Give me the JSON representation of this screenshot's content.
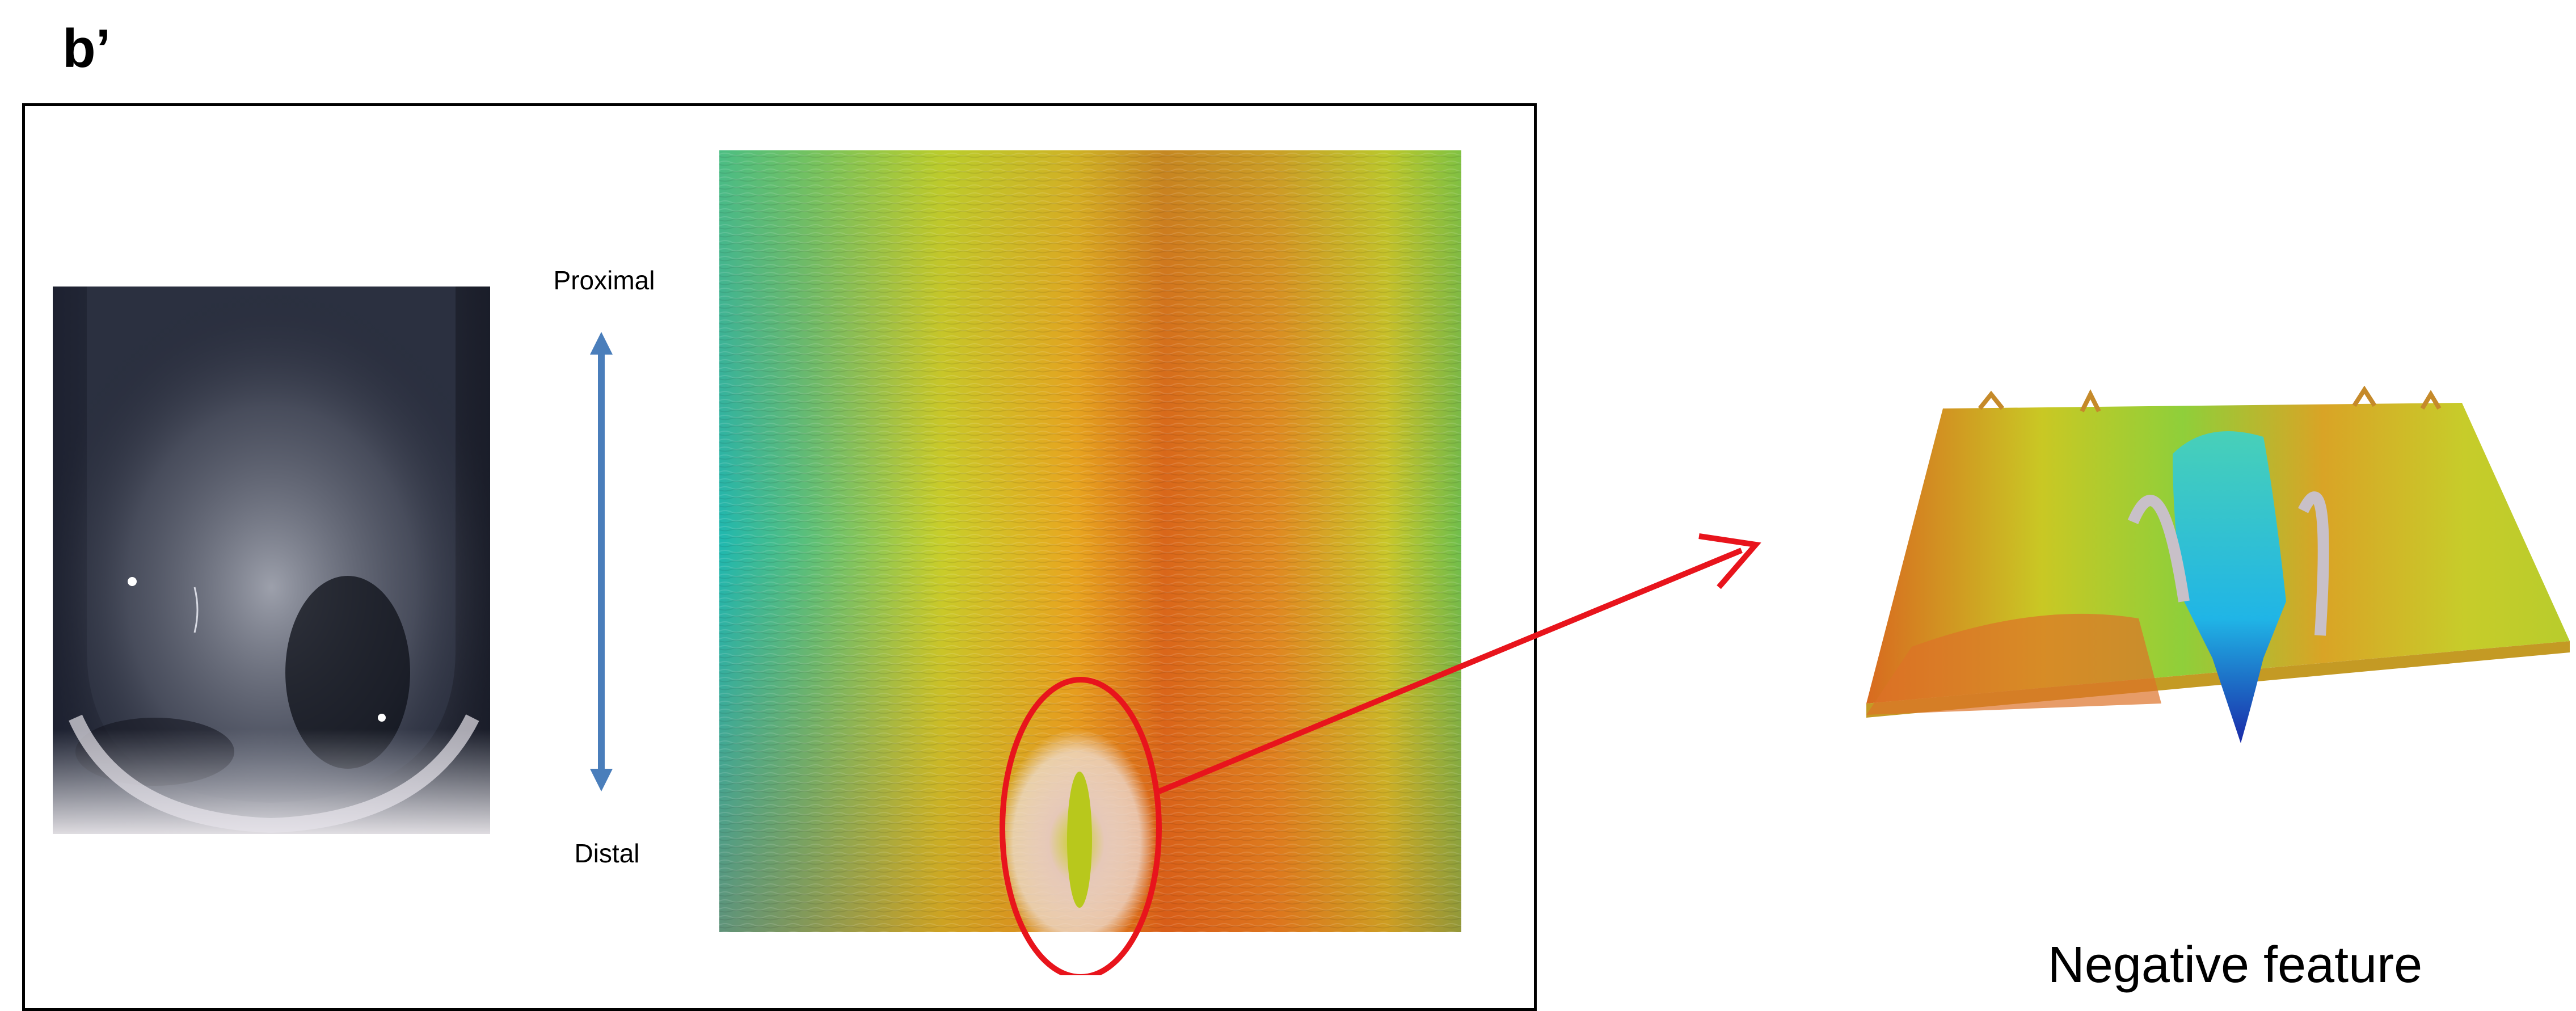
{
  "figure": {
    "panel_label": "b’",
    "axis": {
      "top_label": "Proximal",
      "bottom_label": "Distal"
    },
    "caption": "Negative feature",
    "colors": {
      "frame": "#000000",
      "axis_arrow": "#4a7ebb",
      "highlight": "#e8141c",
      "pointer_arrow": "#e8141c"
    }
  }
}
